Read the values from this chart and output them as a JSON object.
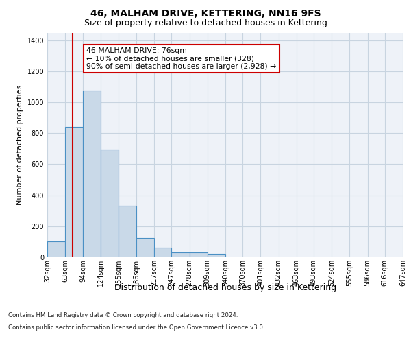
{
  "title": "46, MALHAM DRIVE, KETTERING, NN16 9FS",
  "subtitle": "Size of property relative to detached houses in Kettering",
  "xlabel": "Distribution of detached houses by size in Kettering",
  "ylabel": "Number of detached properties",
  "bar_values": [
    100,
    840,
    1075,
    695,
    330,
    125,
    60,
    30,
    30,
    20,
    0,
    0,
    0,
    0,
    0,
    0,
    0,
    0,
    0,
    0
  ],
  "bin_edges": [
    32,
    63,
    94,
    124,
    155,
    186,
    217,
    247,
    278,
    309,
    340,
    370,
    401,
    432,
    463,
    493,
    524,
    555,
    586,
    616,
    647
  ],
  "bar_color": "#c9d9e8",
  "bar_edge_color": "#4a90c4",
  "grid_color": "#c8d4e0",
  "background_color": "#eef2f8",
  "vline_x": 76,
  "vline_color": "#cc0000",
  "annotation_text": "46 MALHAM DRIVE: 76sqm\n← 10% of detached houses are smaller (328)\n90% of semi-detached houses are larger (2,928) →",
  "annotation_box_color": "#ffffff",
  "annotation_border_color": "#cc0000",
  "footer_line1": "Contains HM Land Registry data © Crown copyright and database right 2024.",
  "footer_line2": "Contains public sector information licensed under the Open Government Licence v3.0.",
  "ylim": [
    0,
    1450
  ],
  "yticks": [
    0,
    200,
    400,
    600,
    800,
    1000,
    1200,
    1400
  ],
  "tick_labels": [
    "32sqm",
    "63sqm",
    "94sqm",
    "124sqm",
    "155sqm",
    "186sqm",
    "217sqm",
    "247sqm",
    "278sqm",
    "309sqm",
    "340sqm",
    "370sqm",
    "401sqm",
    "432sqm",
    "463sqm",
    "493sqm",
    "524sqm",
    "555sqm",
    "586sqm",
    "616sqm",
    "647sqm"
  ],
  "title_fontsize": 10,
  "subtitle_fontsize": 9,
  "ylabel_fontsize": 8,
  "xlabel_fontsize": 9,
  "tick_fontsize": 7
}
